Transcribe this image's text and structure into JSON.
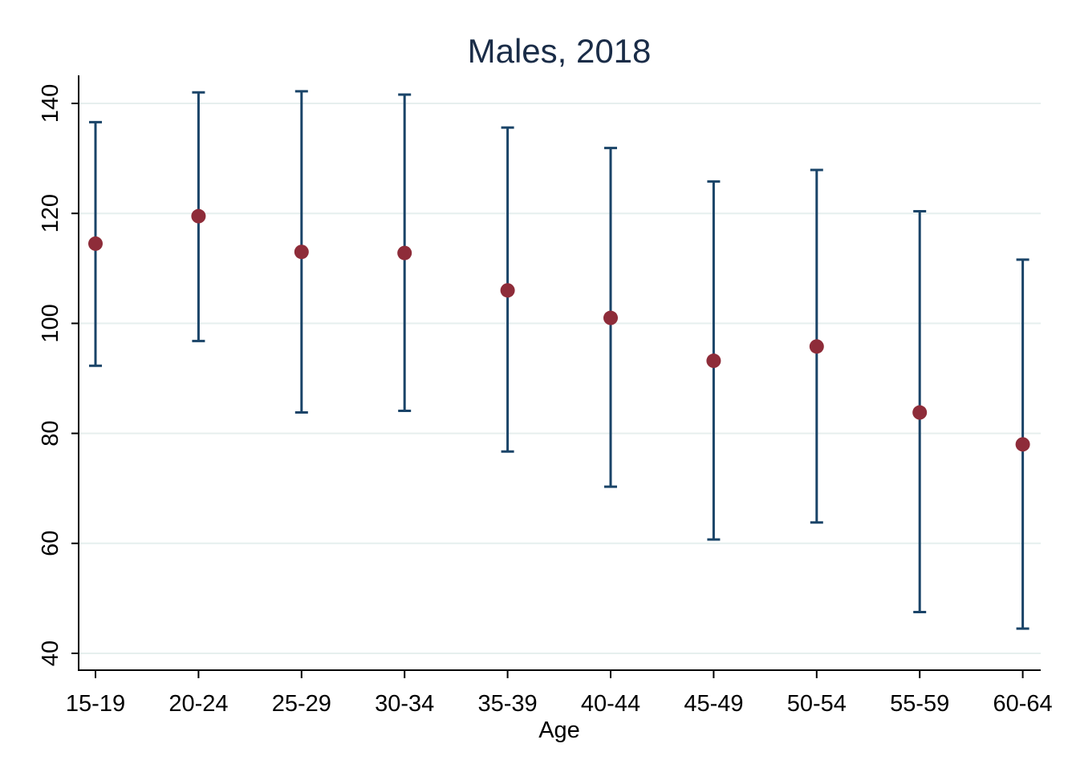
{
  "chart_data": {
    "type": "scatter",
    "title": "Males, 2018",
    "xlabel": "Age",
    "ylabel": "",
    "categories": [
      "15-19",
      "20-24",
      "25-29",
      "30-34",
      "35-39",
      "40-44",
      "45-49",
      "50-54",
      "55-59",
      "60-64"
    ],
    "y_ticks": [
      40,
      60,
      80,
      100,
      120,
      140
    ],
    "ylim": [
      37,
      145
    ],
    "grid": true,
    "legend": "none",
    "series": [
      {
        "values": [
          114.5,
          119.5,
          113,
          112.8,
          106,
          101,
          93.2,
          95.8,
          83.8,
          78
        ],
        "lower": [
          92.3,
          96.8,
          83.8,
          84.1,
          76.7,
          70.3,
          60.7,
          63.8,
          47.5,
          44.5
        ],
        "upper": [
          136.6,
          142,
          142.2,
          141.6,
          135.6,
          131.9,
          125.8,
          127.9,
          120.4,
          111.6
        ]
      }
    ],
    "colors": {
      "point": "#8e2c39",
      "errorbar": "#1a4468",
      "title": "#1a2c47",
      "grid": "#e6efee"
    }
  }
}
